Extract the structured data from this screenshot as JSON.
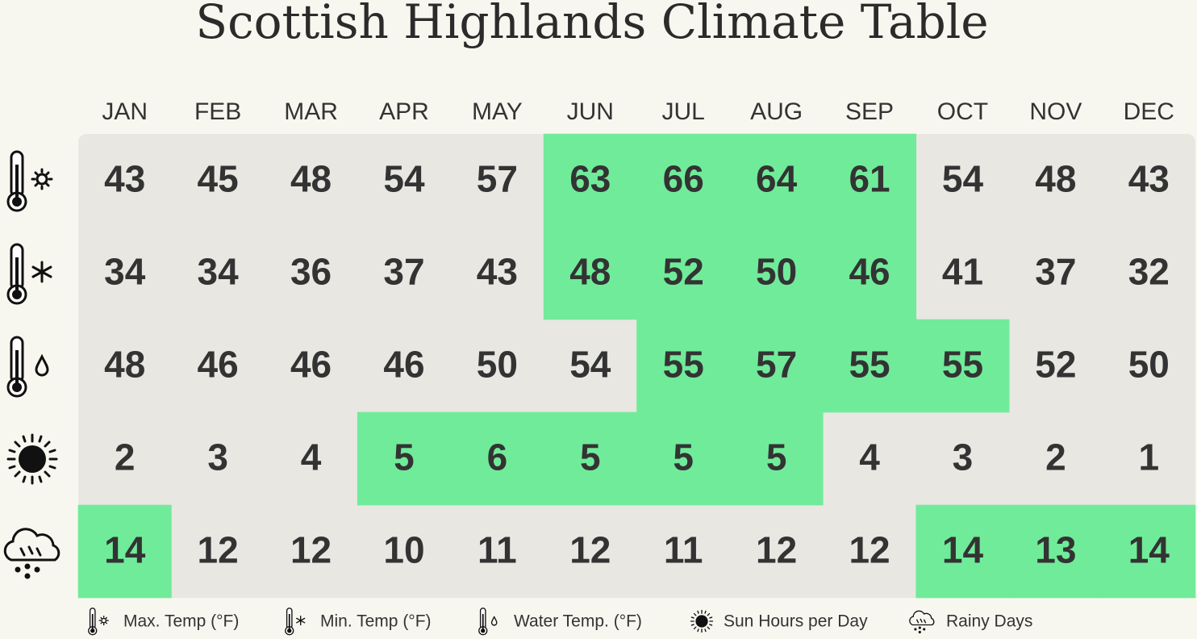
{
  "title": "Scottish Highlands Climate Table",
  "months": [
    "JAN",
    "FEB",
    "MAR",
    "APR",
    "MAY",
    "JUN",
    "JUL",
    "AUG",
    "SEP",
    "OCT",
    "NOV",
    "DEC"
  ],
  "rows": [
    {
      "label": "Max. Temp (°F)",
      "values": [
        43,
        45,
        48,
        54,
        57,
        63,
        66,
        64,
        61,
        54,
        48,
        43
      ],
      "highlighted": [
        false,
        false,
        false,
        false,
        false,
        true,
        true,
        true,
        true,
        false,
        false,
        false
      ]
    },
    {
      "label": "Min. Temp (°F)",
      "values": [
        34,
        34,
        36,
        37,
        43,
        48,
        52,
        50,
        46,
        41,
        37,
        32
      ],
      "highlighted": [
        false,
        false,
        false,
        false,
        false,
        true,
        true,
        true,
        true,
        false,
        false,
        false
      ]
    },
    {
      "label": "Water Temp. (°F)",
      "values": [
        48,
        46,
        46,
        46,
        50,
        54,
        55,
        57,
        55,
        55,
        52,
        50
      ],
      "highlighted": [
        false,
        false,
        false,
        false,
        false,
        false,
        true,
        true,
        true,
        true,
        false,
        false
      ]
    },
    {
      "label": "Sun Hours per Day",
      "values": [
        2,
        3,
        4,
        5,
        6,
        5,
        5,
        5,
        4,
        3,
        2,
        1
      ],
      "highlighted": [
        false,
        false,
        false,
        true,
        true,
        true,
        true,
        true,
        false,
        false,
        false,
        false
      ]
    },
    {
      "label": "Rainy Days",
      "values": [
        14,
        12,
        12,
        10,
        11,
        12,
        11,
        12,
        12,
        14,
        13,
        14
      ],
      "highlighted": [
        true,
        false,
        false,
        false,
        false,
        false,
        false,
        false,
        false,
        true,
        true,
        true
      ]
    }
  ],
  "highlight_color": "#70eb9a"
}
